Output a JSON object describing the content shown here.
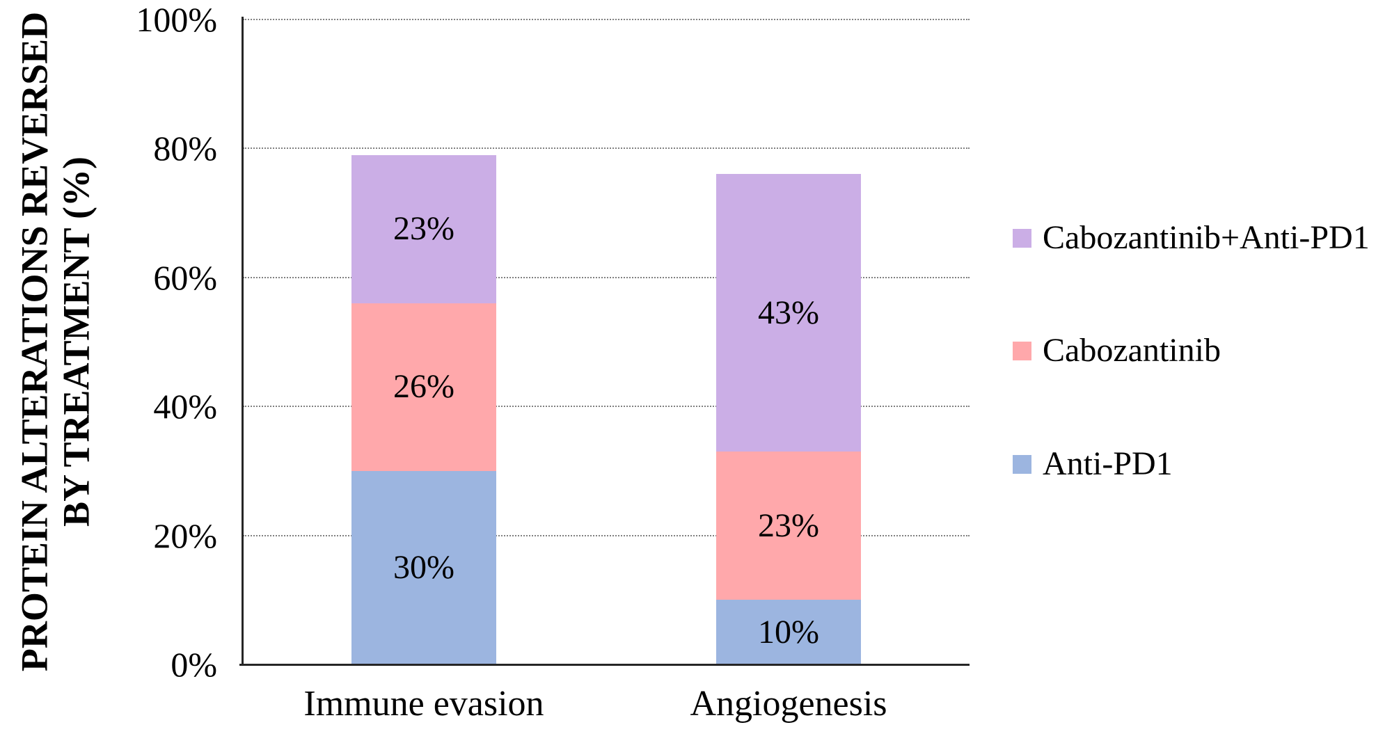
{
  "chart_data": {
    "type": "bar",
    "stacked": true,
    "title": "",
    "ylabel": "PROTEIN ALTERATIONS REVERSED BY TREATMENT (%)",
    "ylabel_lines": [
      "PROTEIN ALTERATIONS REVERSED",
      "BY TREATMENT (%)"
    ],
    "xlabel": "",
    "categories": [
      "Immune evasion",
      "Angiogenesis"
    ],
    "series": [
      {
        "name": "Anti-PD1",
        "color": "#9cb5e0",
        "values": [
          30,
          10
        ]
      },
      {
        "name": "Cabozantinib",
        "color": "#ffa8ab",
        "values": [
          26,
          23
        ]
      },
      {
        "name": "Cabozantinib+Anti-PD1",
        "color": "#cbaee6",
        "values": [
          23,
          43
        ]
      }
    ],
    "bar_totals": [
      79,
      76
    ],
    "data_labels": [
      [
        "30%",
        "26%",
        "23%"
      ],
      [
        "10%",
        "23%",
        "43%"
      ]
    ],
    "yticks": [
      "0%",
      "20%",
      "40%",
      "60%",
      "80%",
      "100%"
    ],
    "ylim": [
      0,
      100
    ],
    "grid": "horizontal-dotted",
    "gridline_color": "#7f7f7f",
    "axis_color": "#262626",
    "legend_position": "right",
    "legend_order_top_to_bottom": [
      "Cabozantinib+Anti-PD1",
      "Cabozantinib",
      "Anti-PD1"
    ]
  }
}
